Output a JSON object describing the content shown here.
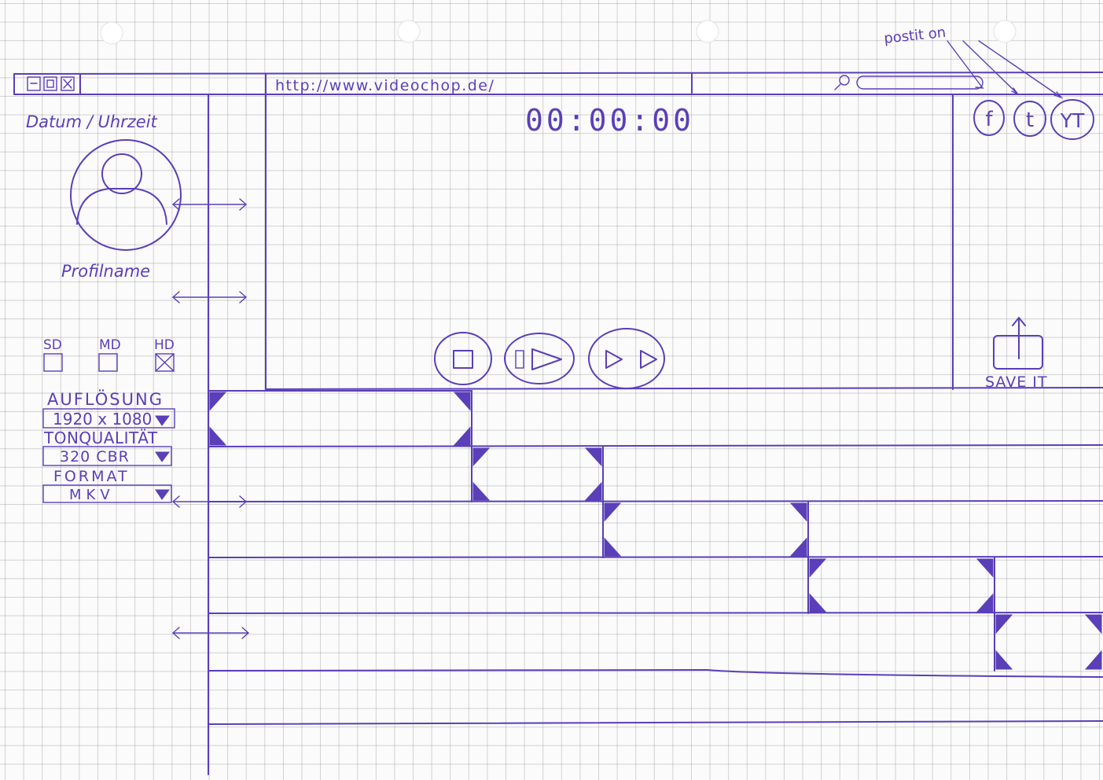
{
  "sticky_note": "postit on",
  "browser": {
    "window_buttons": [
      "close",
      "restore",
      "minimize"
    ],
    "url": "http://www.videochop.de/",
    "search_placeholder": ""
  },
  "sidebar": {
    "datetime_label": "Datum / Uhrzeit",
    "profile_name": "Profilname",
    "quality_options": [
      {
        "label": "SD",
        "checked": false
      },
      {
        "label": "MD",
        "checked": false
      },
      {
        "label": "HD",
        "checked": true
      }
    ],
    "resolution_label": "AUFLÖSUNG",
    "resolution_value": "1920 x 1080",
    "audio_label": "TONQUALITÄT",
    "audio_value": "320 CBR",
    "format_label": "FORMAT",
    "format_value": "MKV"
  },
  "player": {
    "timecode": "00:00:00"
  },
  "social": [
    "f",
    "t",
    "YT"
  ],
  "save_label": "SAVE IT",
  "colors": {
    "ink": "#5a3fb8",
    "paper": "#fbfbfb",
    "grid": "#b0b0b0"
  },
  "icons": [
    "stop-icon",
    "play-icon",
    "fast-forward-icon",
    "search-icon",
    "upload-icon",
    "user-avatar-icon"
  ]
}
